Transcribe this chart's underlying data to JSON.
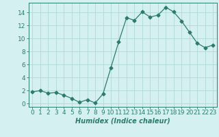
{
  "x": [
    0,
    1,
    2,
    3,
    4,
    5,
    6,
    7,
    8,
    9,
    10,
    11,
    12,
    13,
    14,
    15,
    16,
    17,
    18,
    19,
    20,
    21,
    22,
    23
  ],
  "y": [
    1.8,
    2.0,
    1.6,
    1.7,
    1.3,
    0.8,
    0.2,
    0.6,
    0.1,
    1.5,
    5.5,
    9.5,
    13.2,
    12.8,
    14.1,
    13.3,
    13.6,
    14.8,
    14.1,
    12.7,
    11.0,
    9.3,
    8.6,
    9.0
  ],
  "line_color": "#2d7a6e",
  "marker": "D",
  "marker_size": 2.5,
  "bg_color": "#d4f0f0",
  "grid_color": "#b0d8d8",
  "xlabel": "Humidex (Indice chaleur)",
  "ylabel": "",
  "xlim": [
    -0.5,
    23.5
  ],
  "ylim": [
    -0.5,
    15.5
  ],
  "xticks": [
    0,
    1,
    2,
    3,
    4,
    5,
    6,
    7,
    8,
    9,
    10,
    11,
    12,
    13,
    14,
    15,
    16,
    17,
    18,
    19,
    20,
    21,
    22,
    23
  ],
  "yticks": [
    0,
    2,
    4,
    6,
    8,
    10,
    12,
    14
  ],
  "tick_color": "#2d7a6e",
  "label_fontsize": 6.5,
  "xlabel_fontsize": 7.0
}
